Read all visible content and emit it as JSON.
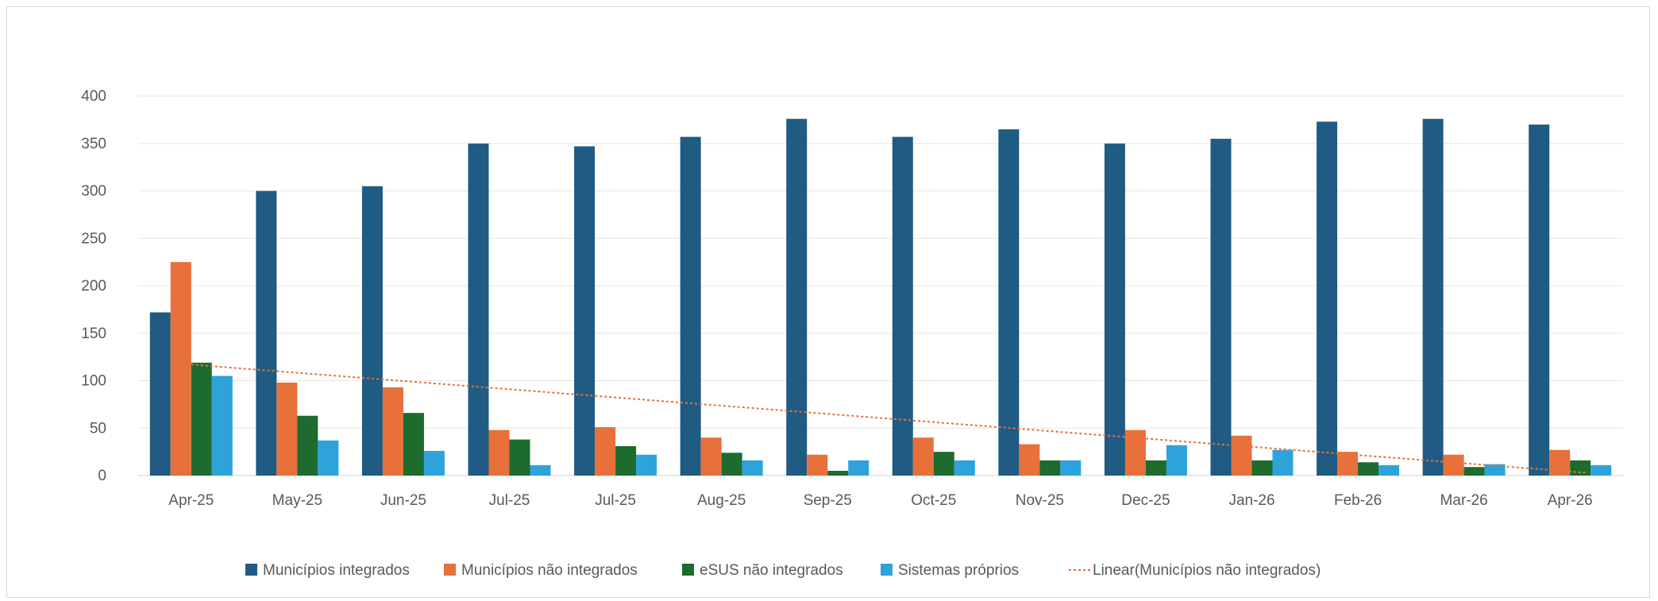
{
  "chart_data": {
    "type": "bar",
    "categories": [
      "Apr-25",
      "May-25",
      "Jun-25",
      "Jul-25",
      "Jul-25",
      "Aug-25",
      "Sep-25",
      "Oct-25",
      "Nov-25",
      "Dec-25",
      "Jan-26",
      "Feb-26",
      "Mar-26",
      "Apr-26"
    ],
    "series": [
      {
        "name": "Municípios integrados",
        "color": "#1f5b82",
        "values": [
          172,
          300,
          305,
          350,
          347,
          357,
          376,
          357,
          365,
          350,
          355,
          373,
          376,
          370
        ]
      },
      {
        "name": "Municípios não integrados",
        "color": "#e8703a",
        "values": [
          225,
          98,
          93,
          48,
          51,
          40,
          22,
          40,
          33,
          48,
          42,
          25,
          22,
          27
        ]
      },
      {
        "name": "eSUS não integrados",
        "color": "#1e6b2e",
        "values": [
          119,
          63,
          66,
          38,
          31,
          24,
          5,
          25,
          16,
          16,
          16,
          14,
          9,
          16
        ]
      },
      {
        "name": "Sistemas próprios",
        "color": "#2ea3db",
        "values": [
          105,
          37,
          26,
          11,
          22,
          16,
          16,
          16,
          16,
          32,
          27,
          11,
          12,
          11
        ]
      }
    ],
    "trendline": {
      "name": "Linear(Municípios não integrados)",
      "color": "#e8703a",
      "start": 117,
      "end": 3
    },
    "ylim": [
      0,
      400
    ],
    "yticks": [
      0,
      50,
      100,
      150,
      200,
      250,
      300,
      350,
      400
    ],
    "grid": true,
    "legend_position": "bottom",
    "title": "",
    "xlabel": "",
    "ylabel": ""
  }
}
